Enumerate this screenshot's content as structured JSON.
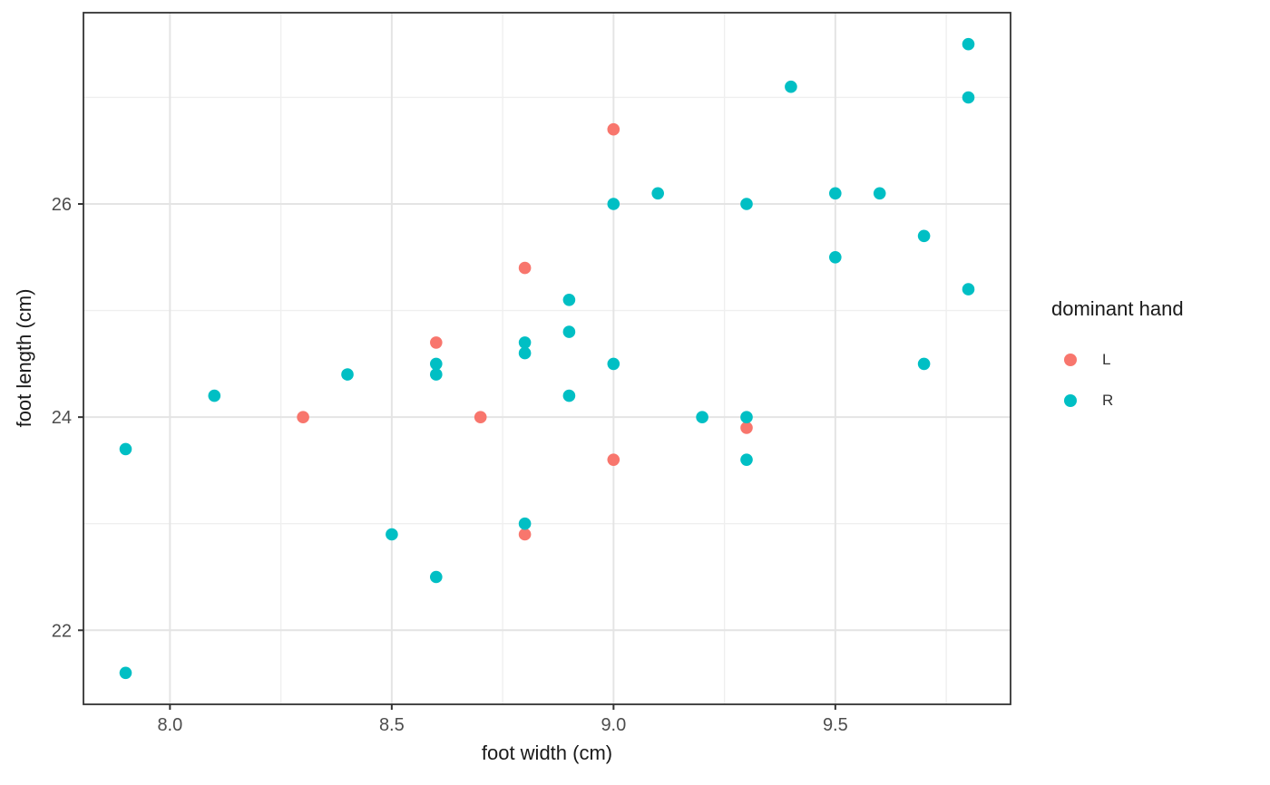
{
  "chart_data": {
    "type": "scatter",
    "title": "",
    "xlabel": "foot width (cm)",
    "ylabel": "foot length (cm)",
    "xlim": [
      7.805,
      9.895
    ],
    "ylim": [
      21.305,
      27.795
    ],
    "x_major_ticks": [
      8.0,
      8.5,
      9.0,
      9.5
    ],
    "x_tick_labels": [
      "8.0",
      "8.5",
      "9.0",
      "9.5"
    ],
    "x_minor_ticks": [
      8.25,
      8.75,
      9.25,
      9.75
    ],
    "y_major_ticks": [
      22,
      24,
      26
    ],
    "y_tick_labels": [
      "22",
      "24",
      "26"
    ],
    "y_minor_ticks": [
      23,
      25,
      27
    ],
    "grid": true,
    "legend": {
      "title": "dominant hand",
      "position": "right"
    },
    "point_radius": 6.8,
    "colors": {
      "background": "#ffffff",
      "panel_border": "#333333",
      "grid_major": "#e4e4e4",
      "grid_minor": "#efefef",
      "tick_mark": "#333333",
      "tick_label": "#4d4d4d",
      "axis_title": "#1a1a1a"
    },
    "series": [
      {
        "name": "L",
        "color": "#F8766D",
        "points": [
          [
            8.3,
            24.0
          ],
          [
            8.6,
            24.7
          ],
          [
            8.7,
            24.0
          ],
          [
            8.8,
            25.4
          ],
          [
            8.8,
            22.9
          ],
          [
            9.0,
            26.7
          ],
          [
            9.0,
            23.6
          ],
          [
            9.3,
            23.9
          ]
        ]
      },
      {
        "name": "R",
        "color": "#00BFC4",
        "points": [
          [
            7.9,
            23.7
          ],
          [
            7.9,
            21.6
          ],
          [
            8.1,
            24.2
          ],
          [
            8.4,
            24.4
          ],
          [
            8.5,
            22.9
          ],
          [
            8.6,
            24.5
          ],
          [
            8.6,
            24.4
          ],
          [
            8.6,
            22.5
          ],
          [
            8.8,
            24.7
          ],
          [
            8.8,
            24.6
          ],
          [
            8.8,
            23.0
          ],
          [
            8.9,
            25.1
          ],
          [
            8.9,
            24.8
          ],
          [
            8.9,
            24.2
          ],
          [
            9.0,
            26.0
          ],
          [
            9.0,
            24.5
          ],
          [
            9.1,
            26.1
          ],
          [
            9.2,
            24.0
          ],
          [
            9.3,
            26.0
          ],
          [
            9.3,
            24.0
          ],
          [
            9.3,
            23.6
          ],
          [
            9.4,
            27.1
          ],
          [
            9.5,
            26.1
          ],
          [
            9.5,
            25.5
          ],
          [
            9.6,
            26.1
          ],
          [
            9.7,
            25.7
          ],
          [
            9.7,
            24.5
          ],
          [
            9.8,
            27.5
          ],
          [
            9.8,
            27.0
          ],
          [
            9.8,
            25.2
          ]
        ]
      }
    ]
  }
}
